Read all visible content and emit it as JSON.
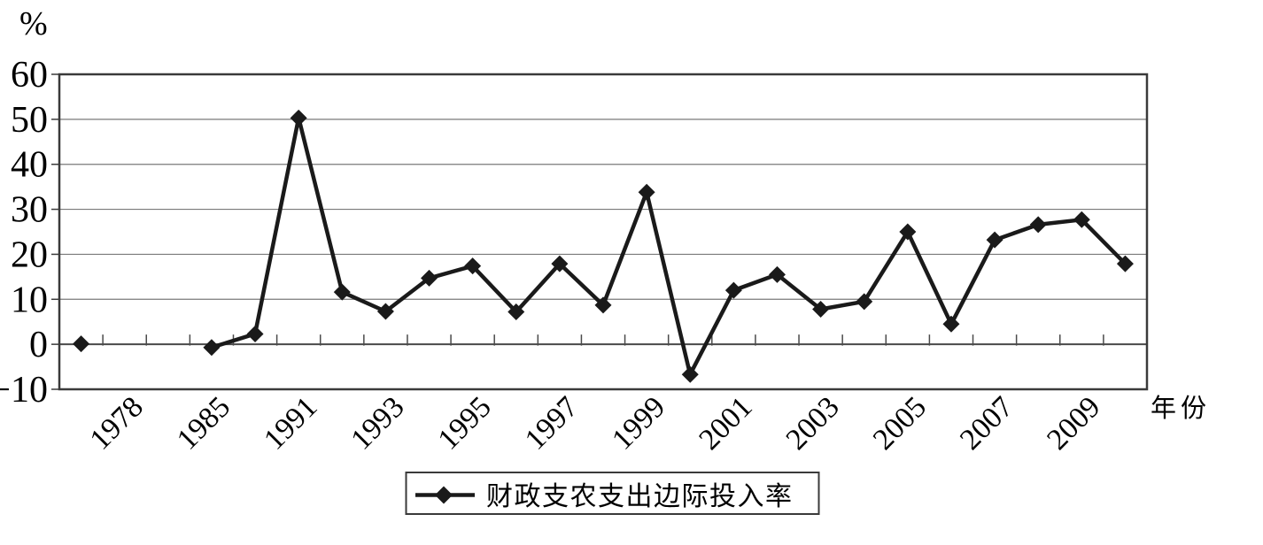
{
  "colors": {
    "background": "#ffffff",
    "series": "#1a1a1a",
    "grid": "#7a7a7a",
    "border": "#3a3a3a",
    "axis": "#4a4a4a",
    "text": "#000000"
  },
  "chart_data": {
    "type": "line",
    "title": "",
    "ylabel": "%",
    "xlabel": "年份",
    "ylim": [
      -10,
      60
    ],
    "ytick_step": 10,
    "ytick_labels": [
      "−10",
      "0",
      "10",
      "20",
      "30",
      "40",
      "50",
      "60"
    ],
    "grid": "horizontal-only",
    "x_axis": {
      "num_categories": 25,
      "ticks_between_categories": true,
      "tick_labels": [
        {
          "category": 2,
          "label": "1978"
        },
        {
          "category": 4,
          "label": "1985"
        },
        {
          "category": 6,
          "label": "1991"
        },
        {
          "category": 8,
          "label": "1993"
        },
        {
          "category": 10,
          "label": "1995"
        },
        {
          "category": 12,
          "label": "1997"
        },
        {
          "category": 14,
          "label": "1999"
        },
        {
          "category": 16,
          "label": "2001"
        },
        {
          "category": 18,
          "label": "2003"
        },
        {
          "category": 20,
          "label": "2005"
        },
        {
          "category": 22,
          "label": "2007"
        },
        {
          "category": 24,
          "label": "2009"
        }
      ]
    },
    "legend": {
      "position": "bottom-center",
      "entries": [
        "财政支农支出边际投入率"
      ]
    },
    "series": [
      {
        "name": "财政支农支出边际投入率",
        "marker": "diamond",
        "color": "#1a1a1a",
        "line_breaks_on_missing_categories": true,
        "points": [
          {
            "category": 1,
            "value": 0.1
          },
          {
            "category": 4,
            "value": -0.7
          },
          {
            "category": 5,
            "value": 2.3
          },
          {
            "category": 6,
            "value": 50.3
          },
          {
            "category": 7,
            "value": 11.6
          },
          {
            "category": 8,
            "value": 7.3
          },
          {
            "category": 9,
            "value": 14.7
          },
          {
            "category": 10,
            "value": 17.4
          },
          {
            "category": 11,
            "value": 7.2
          },
          {
            "category": 12,
            "value": 17.9
          },
          {
            "category": 13,
            "value": 8.7
          },
          {
            "category": 14,
            "value": 33.8
          },
          {
            "category": 15,
            "value": -6.7
          },
          {
            "category": 16,
            "value": 12.0
          },
          {
            "category": 17,
            "value": 15.5
          },
          {
            "category": 18,
            "value": 7.8
          },
          {
            "category": 19,
            "value": 9.5
          },
          {
            "category": 20,
            "value": 25.0
          },
          {
            "category": 21,
            "value": 4.5
          },
          {
            "category": 22,
            "value": 23.2
          },
          {
            "category": 23,
            "value": 26.6
          },
          {
            "category": 24,
            "value": 27.7
          },
          {
            "category": 25,
            "value": 17.9
          }
        ]
      }
    ]
  }
}
